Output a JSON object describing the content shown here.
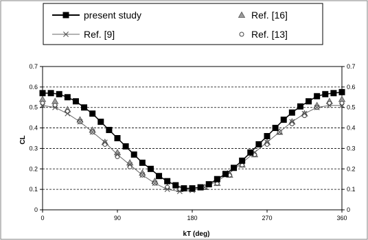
{
  "chart_data": {
    "type": "line",
    "xlabel": "kT (deg)",
    "ylabel": "CL",
    "xlim": [
      0,
      360
    ],
    "ylim": [
      0,
      0.7
    ],
    "x_ticks": [
      0,
      90,
      180,
      270,
      360
    ],
    "y_ticks": [
      0,
      0.1,
      0.2,
      0.3,
      0.4,
      0.5,
      0.6,
      0.7
    ],
    "grid": "horizontal-dashed",
    "legend_position": "top",
    "series": [
      {
        "name": "present study",
        "marker": "filled-square",
        "color": "#000000",
        "x": [
          0,
          10,
          20,
          30,
          40,
          50,
          60,
          70,
          80,
          90,
          100,
          110,
          120,
          130,
          140,
          150,
          160,
          170,
          180,
          190,
          200,
          210,
          220,
          230,
          240,
          250,
          260,
          270,
          280,
          290,
          300,
          310,
          320,
          330,
          340,
          350,
          360
        ],
        "y": [
          0.57,
          0.57,
          0.565,
          0.55,
          0.53,
          0.5,
          0.47,
          0.43,
          0.39,
          0.35,
          0.31,
          0.27,
          0.23,
          0.2,
          0.165,
          0.14,
          0.12,
          0.105,
          0.105,
          0.11,
          0.125,
          0.15,
          0.175,
          0.205,
          0.24,
          0.28,
          0.32,
          0.36,
          0.4,
          0.44,
          0.475,
          0.505,
          0.53,
          0.555,
          0.565,
          0.57,
          0.575
        ]
      },
      {
        "name": "Ref. [9]",
        "marker": "cross",
        "color": "#555555",
        "x": [
          0,
          15,
          30,
          45,
          60,
          75,
          90,
          105,
          120,
          135,
          150,
          165,
          180,
          195,
          210,
          225,
          240,
          255,
          270,
          285,
          300,
          315,
          330,
          345,
          360
        ],
        "y": [
          0.51,
          0.5,
          0.47,
          0.43,
          0.38,
          0.33,
          0.27,
          0.22,
          0.17,
          0.13,
          0.1,
          0.09,
          0.095,
          0.11,
          0.14,
          0.18,
          0.23,
          0.28,
          0.33,
          0.38,
          0.43,
          0.47,
          0.5,
          0.51,
          0.51
        ]
      },
      {
        "name": "Ref. [16]",
        "marker": "triangle",
        "color": "#777777",
        "x": [
          0,
          15,
          30,
          45,
          60,
          75,
          90,
          105,
          120,
          135,
          150,
          165,
          180,
          195,
          210,
          225,
          240,
          255,
          270,
          285,
          300,
          315,
          330,
          345,
          360
        ],
        "y": [
          0.54,
          0.53,
          0.49,
          0.44,
          0.39,
          0.33,
          0.28,
          0.23,
          0.18,
          0.14,
          0.11,
          0.1,
          0.1,
          0.11,
          0.13,
          0.17,
          0.22,
          0.27,
          0.33,
          0.38,
          0.43,
          0.47,
          0.51,
          0.53,
          0.54
        ]
      },
      {
        "name": "Ref. [13]",
        "marker": "open-circle",
        "color": "#444444",
        "x": [
          0,
          15,
          30,
          45,
          60,
          75,
          90,
          105,
          120,
          135,
          150,
          165,
          180,
          195,
          210,
          225,
          240,
          255,
          270,
          285,
          300,
          315,
          330,
          345,
          360
        ],
        "y": [
          0.52,
          0.51,
          0.48,
          0.43,
          0.38,
          0.32,
          0.26,
          0.21,
          0.17,
          0.13,
          0.11,
          0.1,
          0.1,
          0.11,
          0.13,
          0.17,
          0.22,
          0.27,
          0.32,
          0.38,
          0.42,
          0.46,
          0.5,
          0.52,
          0.52
        ]
      }
    ]
  }
}
